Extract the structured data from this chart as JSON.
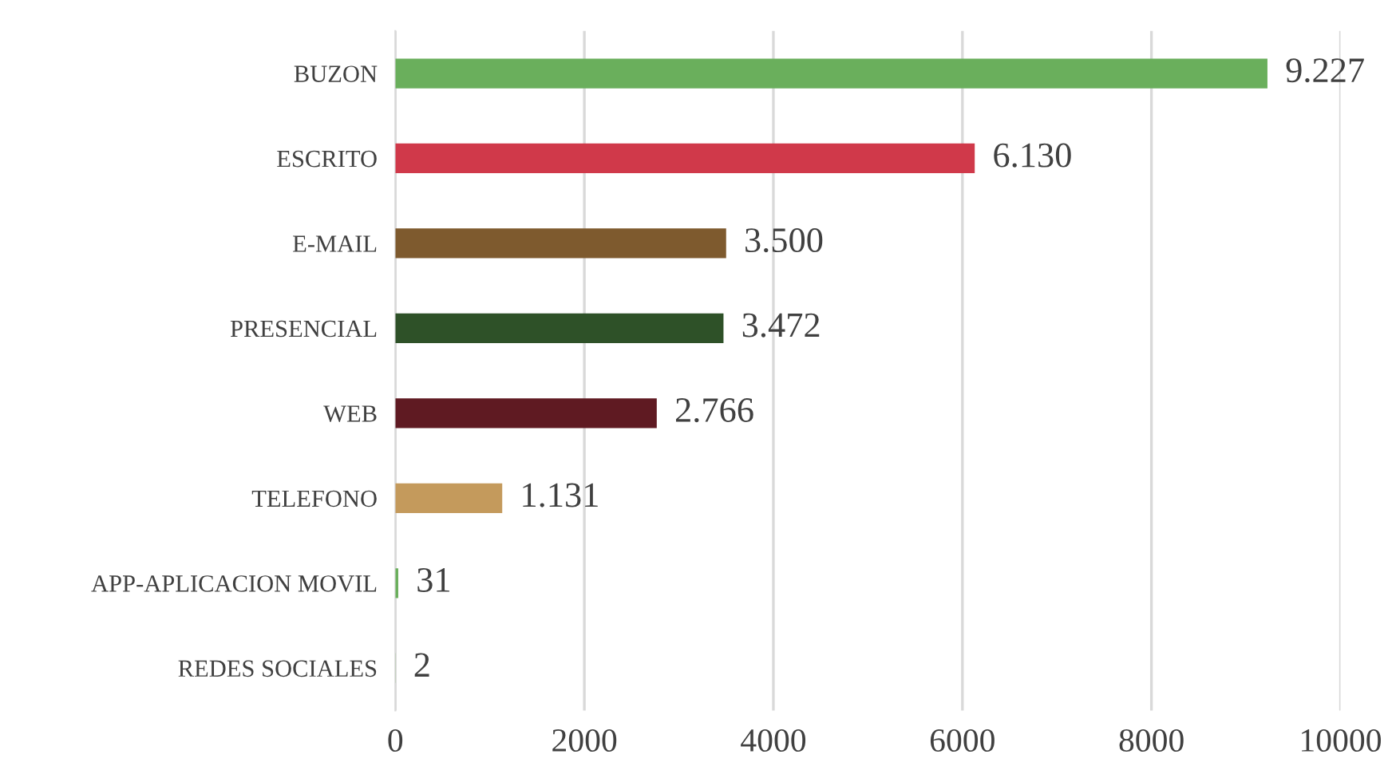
{
  "chart_data": {
    "type": "bar",
    "orientation": "horizontal",
    "categories": [
      "BUZON",
      "ESCRITO",
      "E-MAIL",
      "PRESENCIAL",
      "WEB",
      "TELEFONO",
      "APP-APLICACION MOVIL",
      "REDES SOCIALES"
    ],
    "values": [
      9227,
      6130,
      3500,
      3472,
      2766,
      1131,
      31,
      2
    ],
    "colors": [
      "#6aaf5c",
      "#d0394a",
      "#7e5a2e",
      "#2e5128",
      "#5f1a22",
      "#c49a5c",
      "#6aaf5c",
      "#6aaf5c"
    ],
    "value_labels": [
      "9.227",
      "6.130",
      "3.500",
      "3.472",
      "2.766",
      "1.131",
      "31",
      "2"
    ],
    "xlim": [
      0,
      10000
    ],
    "xticks": [
      0,
      2000,
      4000,
      6000,
      8000,
      10000
    ],
    "grid": "x",
    "legend": false
  }
}
